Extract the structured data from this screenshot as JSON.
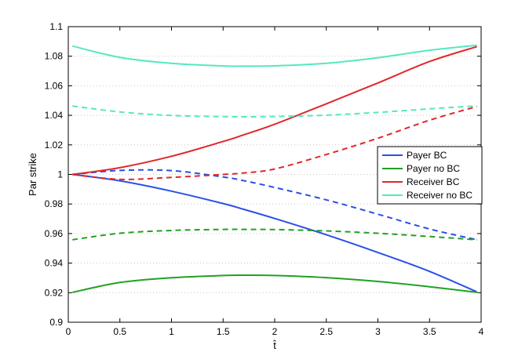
{
  "chart_data": {
    "type": "line",
    "title": "",
    "xlabel": "t̂",
    "ylabel": "Par strike",
    "xlim": [
      0,
      4
    ],
    "ylim": [
      0.9,
      1.1
    ],
    "xticks": [
      "0",
      "0.5",
      "1",
      "1.5",
      "2",
      "2.5",
      "3",
      "3.5",
      "4"
    ],
    "yticks": [
      "0.9",
      "0.92",
      "0.94",
      "0.96",
      "0.98",
      "1",
      "1.02",
      "1.04",
      "1.06",
      "1.08",
      "1.1"
    ],
    "grid": "horizontal dotted",
    "legend_position": "right",
    "legend": [
      "Payer BC",
      "Payer no BC",
      "Receiver BC",
      "Receiver no BC"
    ],
    "x": [
      0.04,
      0.5,
      1.0,
      1.5,
      1.7,
      2.0,
      2.5,
      3.0,
      3.5,
      3.96
    ],
    "series": [
      {
        "name": "Payer BC",
        "color": "#2b50e6",
        "style": "solid",
        "values": [
          1.0,
          0.9957,
          0.9887,
          0.9803,
          0.9764,
          0.9702,
          0.9592,
          0.9472,
          0.9344,
          0.9205
        ]
      },
      {
        "name": "Payer BC",
        "color": "#2b50e6",
        "style": "dashed",
        "values": [
          1.0,
          1.0027,
          1.0026,
          0.9983,
          0.9958,
          0.9912,
          0.9828,
          0.9731,
          0.9631,
          0.9558
        ]
      },
      {
        "name": "Payer no BC",
        "color": "#22a024",
        "style": "solid",
        "values": [
          0.9202,
          0.9269,
          0.9301,
          0.9316,
          0.9318,
          0.9316,
          0.9302,
          0.9276,
          0.924,
          0.9202
        ]
      },
      {
        "name": "Payer no BC",
        "color": "#22a024",
        "style": "dashed",
        "values": [
          0.9558,
          0.9602,
          0.9621,
          0.9628,
          0.9628,
          0.9627,
          0.9618,
          0.9602,
          0.958,
          0.9558
        ]
      },
      {
        "name": "Receiver BC",
        "color": "#e0282b",
        "style": "solid",
        "values": [
          1.0,
          1.0046,
          1.0123,
          1.0223,
          1.0268,
          1.034,
          1.0478,
          1.0619,
          1.0764,
          1.0865
        ]
      },
      {
        "name": "Receiver BC",
        "color": "#e0282b",
        "style": "dashed",
        "values": [
          1.0,
          0.9967,
          0.998,
          1.0,
          1.001,
          1.0037,
          1.0135,
          1.0245,
          1.0367,
          1.046
        ]
      },
      {
        "name": "Receiver no BC",
        "color": "#55e8c0",
        "style": "solid",
        "values": [
          1.0869,
          1.0792,
          1.0752,
          1.0734,
          1.0733,
          1.0735,
          1.0752,
          1.079,
          1.084,
          1.0874
        ]
      },
      {
        "name": "Receiver no BC",
        "color": "#55e8c0",
        "style": "dashed",
        "values": [
          1.0463,
          1.0423,
          1.0399,
          1.0391,
          1.039,
          1.0392,
          1.0401,
          1.042,
          1.0444,
          1.0464
        ]
      }
    ]
  }
}
